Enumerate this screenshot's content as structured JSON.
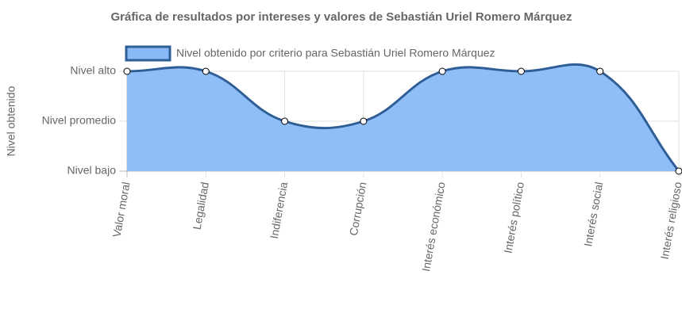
{
  "chart_data": {
    "type": "line",
    "title": "Gráfica de resultados por intereses y valores de Sebastián Uriel Romero Márquez",
    "y_label": "Nivel obtenido",
    "categories": [
      "Valor moral",
      "Legalidad",
      "Indiferencia",
      "Corrupción",
      "Interés económico",
      "Interés político",
      "Interés social",
      "Interés religioso"
    ],
    "series": [
      {
        "name": "Nivel obtenido por criterio para Sebastián Uriel Romero Márquez",
        "color": "#2f5e96",
        "fill": "#89b9f7",
        "values": [
          3,
          3,
          2,
          2,
          3,
          3,
          3,
          1
        ]
      }
    ],
    "ylim": [
      1,
      3
    ],
    "yticks": [
      {
        "value": 1,
        "label": "Nivel bajo"
      },
      {
        "value": 2,
        "label": "Nivel promedio"
      },
      {
        "value": 3,
        "label": "Nivel alto"
      }
    ],
    "grid": true,
    "legend": "top"
  }
}
